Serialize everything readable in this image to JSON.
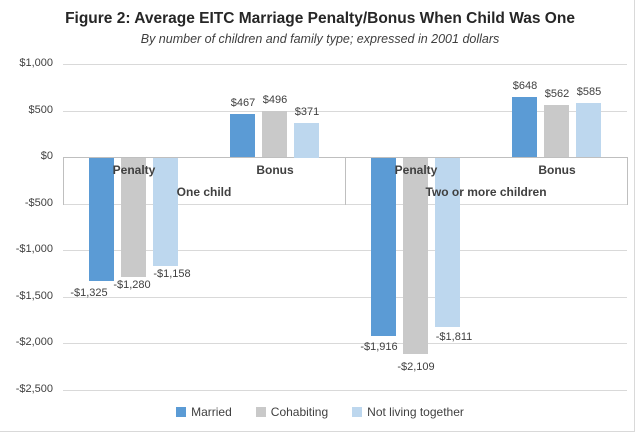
{
  "chart_data": {
    "type": "bar",
    "title": "Figure 2: Average EITC Marriage Penalty/Bonus When Child Was One",
    "subtitle": "By number of children and family type; expressed in 2001 dollars",
    "y_axis": {
      "max": 1000,
      "min": -2500,
      "step": 500,
      "ticks": [
        "$1,000",
        "$500",
        "$0",
        "-$500",
        "-$1,000",
        "-$1,500",
        "-$2,000",
        "-$2,500"
      ]
    },
    "grid": true,
    "legend_position": "bottom",
    "series": [
      {
        "name": "Married",
        "color": "#5B9BD5"
      },
      {
        "name": "Cohabiting",
        "color": "#C9C9C9"
      },
      {
        "name": "Not living together",
        "color": "#BDD7EE"
      }
    ],
    "groups": [
      {
        "label": "One child",
        "subgroups": [
          {
            "label": "Penalty",
            "values": [
              -1325,
              -1280,
              -1158
            ],
            "value_labels": [
              "-$1,325",
              "-$1,280",
              "-$1,158"
            ]
          },
          {
            "label": "Bonus",
            "values": [
              467,
              496,
              371
            ],
            "value_labels": [
              "$467",
              "$496",
              "$371"
            ]
          }
        ]
      },
      {
        "label": "Two or more children",
        "subgroups": [
          {
            "label": "Penalty",
            "values": [
              -1916,
              -2109,
              -1811
            ],
            "value_labels": [
              "-$1,916",
              "-$2,109",
              "-$1,811"
            ]
          },
          {
            "label": "Bonus",
            "values": [
              648,
              562,
              585
            ],
            "value_labels": [
              "$648",
              "$562",
              "$585"
            ]
          }
        ]
      }
    ],
    "colors": {
      "gridline": "#D9D9D9",
      "axis_line": "#BFBFBF",
      "text": "#404040"
    }
  }
}
